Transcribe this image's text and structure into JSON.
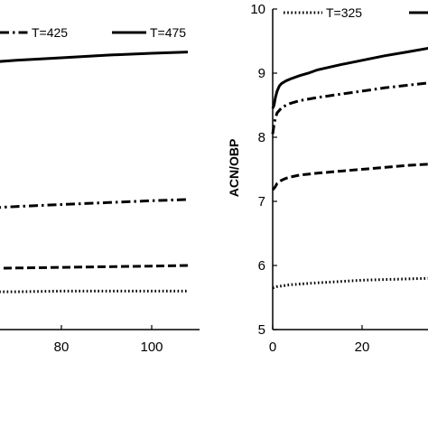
{
  "chart_data": [
    {
      "type": "line",
      "xlabel": "",
      "ylabel": "",
      "x_ticks": [
        "80",
        "100"
      ],
      "xlim": [
        30,
        110
      ],
      "legend": {
        "placement": "top"
      },
      "series": [
        {
          "name": "T=425",
          "style": "dashdot",
          "x": [
            36,
            50,
            60,
            70,
            80,
            90,
            100,
            108
          ],
          "y": [
            6.75,
            6.84,
            6.88,
            6.92,
            6.95,
            6.98,
            7.01,
            7.03
          ]
        },
        {
          "name": "T=475",
          "style": "solid",
          "x": [
            36,
            50,
            60,
            70,
            80,
            90,
            100,
            108
          ],
          "y": [
            8.95,
            9.08,
            9.15,
            9.2,
            9.24,
            9.28,
            9.31,
            9.33
          ]
        },
        {
          "name": "",
          "style": "dashed",
          "x": [
            36,
            50,
            60,
            70,
            80,
            90,
            100,
            108
          ],
          "y": [
            5.92,
            5.94,
            5.95,
            5.96,
            5.97,
            5.98,
            5.99,
            6.0
          ]
        },
        {
          "name": "",
          "style": "dotted",
          "x": [
            36,
            50,
            60,
            70,
            80,
            90,
            100,
            108
          ],
          "y": [
            5.58,
            5.58,
            5.59,
            5.59,
            5.6,
            5.6,
            5.6,
            5.6
          ]
        }
      ]
    },
    {
      "type": "line",
      "xlabel": "",
      "ylabel": "ACN/OBP",
      "ylim": [
        5,
        10
      ],
      "y_ticks": [
        "5",
        "6",
        "7",
        "8",
        "9",
        "10"
      ],
      "x_ticks": [
        "0",
        "20"
      ],
      "xlim": [
        0,
        40
      ],
      "legend": {
        "placement": "top"
      },
      "series": [
        {
          "name": "T=325",
          "style": "dotted",
          "x": [
            0,
            0.5,
            1,
            2,
            4,
            6,
            10,
            15,
            20,
            25,
            30,
            35,
            40
          ],
          "y": [
            5.65,
            5.66,
            5.67,
            5.68,
            5.7,
            5.71,
            5.73,
            5.75,
            5.77,
            5.78,
            5.79,
            5.8,
            5.81
          ]
        },
        {
          "name": "",
          "style": "solid",
          "x": [
            0,
            0.3,
            0.6,
            1,
            1.5,
            2,
            3,
            4,
            6,
            8,
            10,
            15,
            20,
            25,
            30,
            35,
            40
          ],
          "y": [
            8.45,
            8.5,
            8.62,
            8.72,
            8.8,
            8.84,
            8.88,
            8.91,
            8.96,
            9.0,
            9.05,
            9.13,
            9.2,
            9.27,
            9.33,
            9.39,
            9.45
          ]
        },
        {
          "name": "",
          "style": "dashdot",
          "x": [
            0,
            0.3,
            0.6,
            1,
            2,
            3,
            4,
            6,
            10,
            15,
            20,
            25,
            30,
            35,
            40
          ],
          "y": [
            8.05,
            8.2,
            8.3,
            8.38,
            8.46,
            8.5,
            8.53,
            8.57,
            8.62,
            8.67,
            8.72,
            8.77,
            8.81,
            8.85,
            8.88
          ]
        },
        {
          "name": "",
          "style": "dashed",
          "x": [
            0,
            0.5,
            1,
            2,
            3,
            4,
            6,
            10,
            15,
            20,
            25,
            30,
            35,
            40
          ],
          "y": [
            7.18,
            7.22,
            7.28,
            7.33,
            7.36,
            7.38,
            7.41,
            7.44,
            7.47,
            7.5,
            7.53,
            7.56,
            7.58,
            7.6
          ]
        }
      ]
    }
  ]
}
